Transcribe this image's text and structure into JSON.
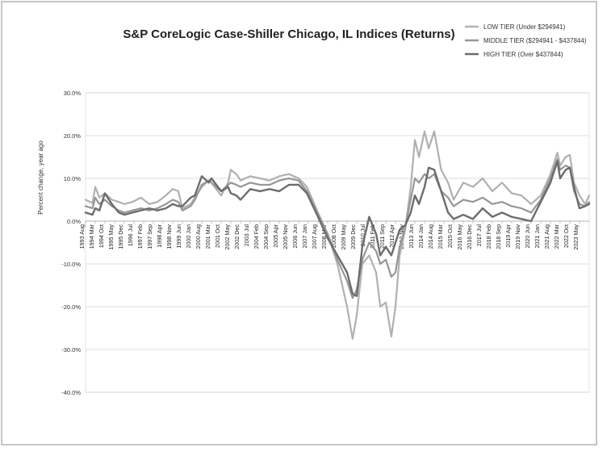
{
  "chart_data": {
    "type": "line",
    "title": "S&P CoreLogic Case-Shiller Chicago, IL Indices (Returns)",
    "xlabel": "",
    "ylabel": "Percent change, year ago",
    "ylim": [
      -40,
      30
    ],
    "yticks": [
      30,
      20,
      10,
      0,
      -10,
      -20,
      -30,
      -40
    ],
    "ytick_labels": [
      "30.0%",
      "20.0%",
      "10.0%",
      "0.0%",
      "-10.0%",
      "-20.0%",
      "-30.0%",
      "-40.0%"
    ],
    "grid": true,
    "legend_position": "top-right",
    "x_start": "1993 Aug",
    "x_end": "2023 Dec",
    "x_tick_labels": [
      "1993 Aug",
      "1994 Mar",
      "1994 Oct",
      "1995 May",
      "1995 Dec",
      "1996 Jul",
      "1997 Feb",
      "1997 Sep",
      "1998 Apr",
      "1998 Nov",
      "1999 Jun",
      "2000 Jan",
      "2000 Aug",
      "2001 Mar",
      "2001 Oct",
      "2002 May",
      "2002 Dec",
      "2003 Jul",
      "2004 Feb",
      "2004 Sep",
      "2005 Apr",
      "2005 Nov",
      "2006 Jun",
      "2007 Jan",
      "2007 Aug",
      "2008 Mar",
      "2008 Oct",
      "2009 May",
      "2009 Dec",
      "2010 Jul",
      "2011 Feb",
      "2011 Sep",
      "2012 Apr",
      "2012 Nov",
      "2013 Jun",
      "2014 Jan",
      "2014 Aug",
      "2015 Mar",
      "2015 Oct",
      "2016 May",
      "2016 Dec",
      "2017 Jul",
      "2018 Feb",
      "2018 Sep",
      "2019 Apr",
      "2019 Nov",
      "2020 Jun",
      "2021 Jan",
      "2021 Aug",
      "2022 Mar",
      "2022 Oct",
      "2023 May"
    ],
    "series": [
      {
        "name": "LOW TIER (Under $294941)",
        "color": "#b0b0b0",
        "points": [
          [
            "1993 Aug",
            5.0
          ],
          [
            "1994 Jan",
            4.2
          ],
          [
            "1994 Mar",
            8.0
          ],
          [
            "1994 Jun",
            5.5
          ],
          [
            "1994 Oct",
            6.5
          ],
          [
            "1995 Mar",
            5.0
          ],
          [
            "1995 Aug",
            4.5
          ],
          [
            "1995 Dec",
            4.0
          ],
          [
            "1996 Jun",
            4.5
          ],
          [
            "1996 Dec",
            5.5
          ],
          [
            "1997 Jun",
            4.0
          ],
          [
            "1997 Dec",
            4.5
          ],
          [
            "1998 Jun",
            6.0
          ],
          [
            "1998 Nov",
            7.5
          ],
          [
            "1999 Mar",
            7.0
          ],
          [
            "1999 Jun",
            3.0
          ],
          [
            "1999 Dec",
            4.0
          ],
          [
            "2000 Mar",
            5.5
          ],
          [
            "2000 Aug",
            8.0
          ],
          [
            "2001 Jan",
            9.5
          ],
          [
            "2001 Mar",
            9.0
          ],
          [
            "2001 Oct",
            6.0
          ],
          [
            "2002 Mar",
            9.0
          ],
          [
            "2002 May",
            12.0
          ],
          [
            "2002 Sep",
            11.0
          ],
          [
            "2002 Dec",
            9.5
          ],
          [
            "2003 Jul",
            10.5
          ],
          [
            "2004 Feb",
            10.0
          ],
          [
            "2004 Sep",
            9.5
          ],
          [
            "2005 Apr",
            10.5
          ],
          [
            "2005 Nov",
            11.0
          ],
          [
            "2006 Jun",
            10.0
          ],
          [
            "2006 Dec",
            8.0
          ],
          [
            "2007 Aug",
            2.0
          ],
          [
            "2008 Mar",
            -3.0
          ],
          [
            "2008 Oct",
            -10.0
          ],
          [
            "2009 May",
            -20.0
          ],
          [
            "2009 Sep",
            -27.5
          ],
          [
            "2009 Dec",
            -22.0
          ],
          [
            "2010 Apr",
            -10.0
          ],
          [
            "2010 Sep",
            -8.0
          ],
          [
            "2011 Feb",
            -12.0
          ],
          [
            "2011 May",
            -20.0
          ],
          [
            "2011 Sep",
            -19.0
          ],
          [
            "2012 Jan",
            -27.0
          ],
          [
            "2012 Apr",
            -20.0
          ],
          [
            "2012 Jul",
            -8.0
          ],
          [
            "2012 Nov",
            -2.0
          ],
          [
            "2013 Mar",
            8.0
          ],
          [
            "2013 Jun",
            19.0
          ],
          [
            "2013 Sep",
            15.0
          ],
          [
            "2014 Jan",
            21.0
          ],
          [
            "2014 Apr",
            17.0
          ],
          [
            "2014 Aug",
            21.0
          ],
          [
            "2015 Jan",
            12.0
          ],
          [
            "2015 Jun",
            9.0
          ],
          [
            "2015 Oct",
            5.0
          ],
          [
            "2016 May",
            9.0
          ],
          [
            "2016 Dec",
            8.0
          ],
          [
            "2017 Jul",
            10.0
          ],
          [
            "2018 Feb",
            7.0
          ],
          [
            "2018 Sep",
            9.0
          ],
          [
            "2019 Apr",
            6.5
          ],
          [
            "2019 Nov",
            6.0
          ],
          [
            "2020 Jun",
            4.0
          ],
          [
            "2021 Jan",
            6.0
          ],
          [
            "2021 Aug",
            11.0
          ],
          [
            "2022 Jan",
            16.0
          ],
          [
            "2022 Mar",
            13.0
          ],
          [
            "2022 Jul",
            15.0
          ],
          [
            "2022 Oct",
            15.5
          ],
          [
            "2023 Jan",
            9.0
          ],
          [
            "2023 May",
            6.0
          ],
          [
            "2023 Sep",
            4.0
          ],
          [
            "2023 Dec",
            6.0
          ]
        ]
      },
      {
        "name": "MIDDLE TIER ($294941 - $437844)",
        "color": "#969696",
        "points": [
          [
            "1993 Aug",
            3.5
          ],
          [
            "1994 Jan",
            3.0
          ],
          [
            "1994 Mar",
            5.5
          ],
          [
            "1994 Jun",
            4.0
          ],
          [
            "1994 Oct",
            5.0
          ],
          [
            "1995 Mar",
            3.5
          ],
          [
            "1995 Aug",
            2.5
          ],
          [
            "1995 Dec",
            2.0
          ],
          [
            "1996 Jun",
            2.5
          ],
          [
            "1996 Dec",
            3.0
          ],
          [
            "1997 Jun",
            2.5
          ],
          [
            "1997 Dec",
            3.0
          ],
          [
            "1998 Jun",
            4.0
          ],
          [
            "1998 Nov",
            5.0
          ],
          [
            "1999 Mar",
            4.5
          ],
          [
            "1999 Jun",
            2.5
          ],
          [
            "1999 Dec",
            3.5
          ],
          [
            "2000 Mar",
            5.0
          ],
          [
            "2000 Aug",
            8.5
          ],
          [
            "2001 Jan",
            9.5
          ],
          [
            "2001 Mar",
            9.0
          ],
          [
            "2001 Oct",
            7.0
          ],
          [
            "2002 Mar",
            8.5
          ],
          [
            "2002 May",
            9.0
          ],
          [
            "2002 Sep",
            8.5
          ],
          [
            "2002 Dec",
            8.0
          ],
          [
            "2003 Jul",
            9.0
          ],
          [
            "2004 Feb",
            8.5
          ],
          [
            "2004 Sep",
            8.5
          ],
          [
            "2005 Apr",
            9.5
          ],
          [
            "2005 Nov",
            10.0
          ],
          [
            "2006 Jun",
            9.5
          ],
          [
            "2006 Dec",
            7.0
          ],
          [
            "2007 Aug",
            1.5
          ],
          [
            "2008 Mar",
            -3.0
          ],
          [
            "2008 Oct",
            -9.0
          ],
          [
            "2009 May",
            -14.0
          ],
          [
            "2009 Sep",
            -18.0
          ],
          [
            "2009 Dec",
            -16.0
          ],
          [
            "2010 Apr",
            -9.0
          ],
          [
            "2010 Sep",
            -5.0
          ],
          [
            "2011 Feb",
            -7.0
          ],
          [
            "2011 May",
            -10.0
          ],
          [
            "2011 Sep",
            -9.0
          ],
          [
            "2012 Jan",
            -13.0
          ],
          [
            "2012 Apr",
            -12.0
          ],
          [
            "2012 Jul",
            -6.0
          ],
          [
            "2012 Nov",
            -1.5
          ],
          [
            "2013 Mar",
            5.0
          ],
          [
            "2013 Jun",
            10.0
          ],
          [
            "2013 Sep",
            9.0
          ],
          [
            "2014 Jan",
            11.0
          ],
          [
            "2014 Apr",
            10.0
          ],
          [
            "2014 Aug",
            11.0
          ],
          [
            "2015 Jan",
            7.0
          ],
          [
            "2015 Jun",
            5.5
          ],
          [
            "2015 Oct",
            3.5
          ],
          [
            "2016 May",
            5.0
          ],
          [
            "2016 Dec",
            4.5
          ],
          [
            "2017 Jul",
            5.5
          ],
          [
            "2018 Feb",
            4.0
          ],
          [
            "2018 Sep",
            4.5
          ],
          [
            "2019 Apr",
            3.5
          ],
          [
            "2019 Nov",
            3.0
          ],
          [
            "2020 Jun",
            2.0
          ],
          [
            "2021 Jan",
            5.0
          ],
          [
            "2021 Aug",
            10.0
          ],
          [
            "2022 Jan",
            14.5
          ],
          [
            "2022 Mar",
            12.0
          ],
          [
            "2022 Jul",
            13.0
          ],
          [
            "2022 Oct",
            12.5
          ],
          [
            "2023 Jan",
            7.0
          ],
          [
            "2023 May",
            4.0
          ],
          [
            "2023 Sep",
            3.5
          ],
          [
            "2023 Dec",
            4.5
          ]
        ]
      },
      {
        "name": "HIGH TIER (Over $437844)",
        "color": "#6c6c6c",
        "points": [
          [
            "1993 Aug",
            2.0
          ],
          [
            "1994 Jan",
            1.5
          ],
          [
            "1994 Mar",
            3.0
          ],
          [
            "1994 Jun",
            2.5
          ],
          [
            "1994 Oct",
            6.5
          ],
          [
            "1995 Mar",
            4.0
          ],
          [
            "1995 Aug",
            2.0
          ],
          [
            "1995 Dec",
            1.5
          ],
          [
            "1996 Jun",
            2.0
          ],
          [
            "1996 Dec",
            2.5
          ],
          [
            "1997 Jun",
            3.0
          ],
          [
            "1997 Dec",
            2.5
          ],
          [
            "1998 Jun",
            3.0
          ],
          [
            "1998 Nov",
            4.0
          ],
          [
            "1999 Mar",
            3.5
          ],
          [
            "1999 Jun",
            3.5
          ],
          [
            "1999 Dec",
            5.5
          ],
          [
            "2000 Mar",
            6.0
          ],
          [
            "2000 Aug",
            10.5
          ],
          [
            "2001 Jan",
            9.0
          ],
          [
            "2001 Mar",
            10.0
          ],
          [
            "2001 Oct",
            7.0
          ],
          [
            "2002 Mar",
            8.0
          ],
          [
            "2002 May",
            6.5
          ],
          [
            "2002 Sep",
            6.0
          ],
          [
            "2002 Dec",
            5.0
          ],
          [
            "2003 Jul",
            7.5
          ],
          [
            "2004 Feb",
            7.0
          ],
          [
            "2004 Sep",
            7.5
          ],
          [
            "2005 Apr",
            7.0
          ],
          [
            "2005 Nov",
            8.5
          ],
          [
            "2006 Jun",
            8.5
          ],
          [
            "2006 Dec",
            6.5
          ],
          [
            "2007 Aug",
            1.0
          ],
          [
            "2008 Mar",
            -4.0
          ],
          [
            "2008 Oct",
            -8.0
          ],
          [
            "2009 May",
            -12.0
          ],
          [
            "2009 Sep",
            -17.0
          ],
          [
            "2009 Dec",
            -17.5
          ],
          [
            "2010 Apr",
            -6.0
          ],
          [
            "2010 Sep",
            1.0
          ],
          [
            "2011 Feb",
            -3.0
          ],
          [
            "2011 May",
            -8.0
          ],
          [
            "2011 Sep",
            -6.0
          ],
          [
            "2012 Jan",
            -8.0
          ],
          [
            "2012 Apr",
            -5.0
          ],
          [
            "2012 Jul",
            -2.0
          ],
          [
            "2012 Nov",
            -1.0
          ],
          [
            "2013 Mar",
            2.0
          ],
          [
            "2013 Jun",
            6.0
          ],
          [
            "2013 Sep",
            4.0
          ],
          [
            "2014 Jan",
            8.0
          ],
          [
            "2014 Apr",
            12.5
          ],
          [
            "2014 Aug",
            12.0
          ],
          [
            "2015 Jan",
            7.0
          ],
          [
            "2015 Jun",
            2.0
          ],
          [
            "2015 Oct",
            0.5
          ],
          [
            "2016 May",
            1.5
          ],
          [
            "2016 Dec",
            0.5
          ],
          [
            "2017 Jul",
            3.0
          ],
          [
            "2018 Feb",
            1.0
          ],
          [
            "2018 Sep",
            2.0
          ],
          [
            "2019 Apr",
            1.0
          ],
          [
            "2019 Nov",
            0.5
          ],
          [
            "2020 Jun",
            0.0
          ],
          [
            "2021 Jan",
            4.5
          ],
          [
            "2021 Aug",
            9.0
          ],
          [
            "2022 Jan",
            14.0
          ],
          [
            "2022 Mar",
            10.0
          ],
          [
            "2022 Jul",
            12.0
          ],
          [
            "2022 Oct",
            12.5
          ],
          [
            "2023 Jan",
            8.0
          ],
          [
            "2023 May",
            3.0
          ],
          [
            "2023 Sep",
            3.5
          ],
          [
            "2023 Dec",
            4.0
          ]
        ]
      }
    ]
  }
}
